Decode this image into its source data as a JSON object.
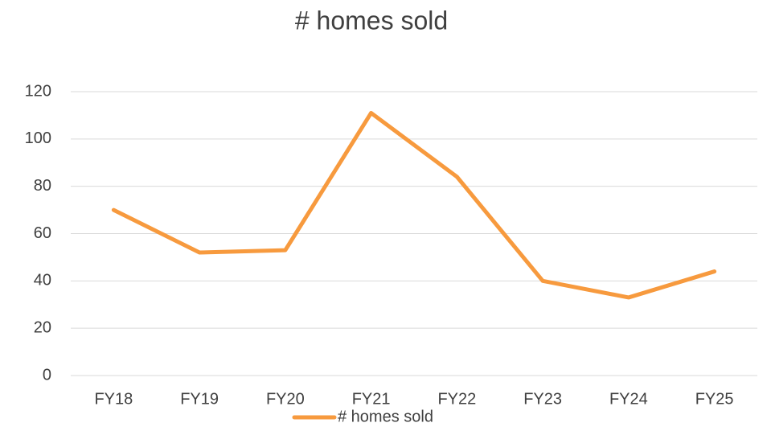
{
  "chart_data": {
    "type": "line",
    "title": "# homes sold",
    "categories": [
      "FY18",
      "FY19",
      "FY20",
      "FY21",
      "FY22",
      "FY23",
      "FY24",
      "FY25"
    ],
    "series": [
      {
        "name": "# homes sold",
        "color": "#f79a3e",
        "values": [
          70,
          52,
          53,
          111,
          84,
          40,
          33,
          44
        ]
      }
    ],
    "ylim": [
      0,
      120
    ],
    "yticks": [
      0,
      20,
      40,
      60,
      80,
      100,
      120
    ],
    "grid": true,
    "legend": "bottom"
  }
}
